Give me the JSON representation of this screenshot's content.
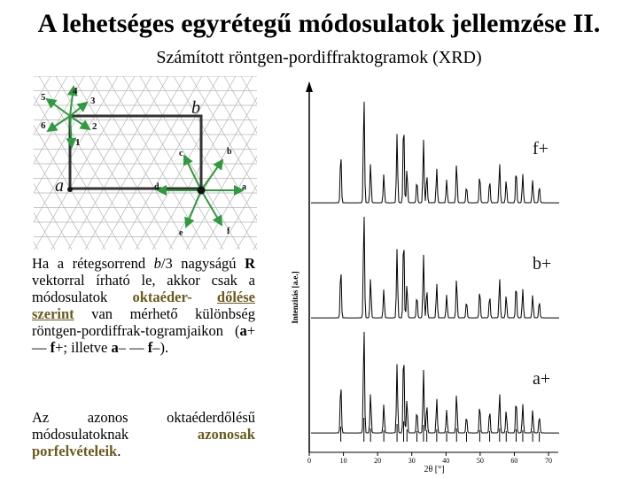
{
  "slide": {
    "title": "A lehetséges egyrétegű módosulatok jellemzése II.",
    "subtitle": "Számított röntgen-pordiffraktogramok (XRD)"
  },
  "lattice_figure": {
    "axis_labels": {
      "a": "a",
      "b": "b"
    },
    "left_arrow_numbers": [
      "4",
      "5",
      "3",
      "6",
      "2",
      "1"
    ],
    "right_arrow_labels": [
      "c",
      "b",
      "d",
      "a",
      "e",
      "f"
    ]
  },
  "xrd_figure": {
    "patterns": [
      "f+",
      "b+",
      "a+"
    ],
    "ylabel": "Intenzitás [a.e.]",
    "xlabel": "2θ [°]",
    "x_ticks": [
      "0",
      "10",
      "20",
      "30",
      "40",
      "50",
      "60",
      "70"
    ]
  },
  "text": {
    "p1_a": "Ha a rétegsorrend ",
    "p1_b": "b",
    "p1_c": "/3 nagyságú ",
    "p1_d": "R",
    "p1_e": " vektorral írható le, akkor csak a módosulatok ",
    "p1_f": "oktaéder-",
    "p1_g": "dőlése szerint",
    "p1_h": " van mérhető különbség röntgen-pordiffrak-togramjaikon (",
    "p1_i": "a",
    "p1_j": "+ — ",
    "p1_k": "f",
    "p1_l": "+; illetve ",
    "p1_m": "a",
    "p1_n": "– — ",
    "p1_o": "f",
    "p1_p": "–).",
    "p2_a": "Az azonos oktaéderdőlésű módosulatoknak ",
    "p2_b": "azonosak porfelvételeik",
    "p2_c": "."
  }
}
